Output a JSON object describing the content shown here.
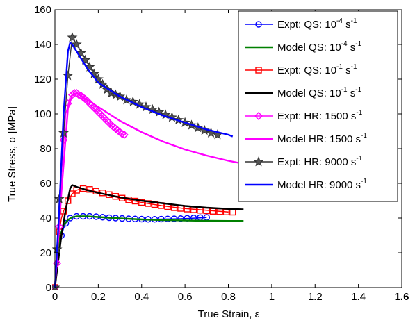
{
  "chart_data": {
    "type": "line",
    "title": "",
    "xlabel": "True Strain, ε",
    "ylabel": "True  Stress, σ [MPa]",
    "xlim": [
      0,
      1.6
    ],
    "ylim": [
      0,
      160
    ],
    "xticks": [
      {
        "value": 0,
        "label": "0"
      },
      {
        "value": 0.2,
        "label": "0.2"
      },
      {
        "value": 0.4,
        "label": "0.4"
      },
      {
        "value": 0.6,
        "label": "0.6"
      },
      {
        "value": 0.8,
        "label": "0.8"
      },
      {
        "value": 1.0,
        "label": "1"
      },
      {
        "value": 1.2,
        "label": "1.2"
      },
      {
        "value": 1.4,
        "label": "1.4"
      },
      {
        "value": 1.6,
        "label": "1.6"
      }
    ],
    "yticks": [
      {
        "value": 0,
        "label": "0"
      },
      {
        "value": 20,
        "label": "20"
      },
      {
        "value": 40,
        "label": "40"
      },
      {
        "value": 60,
        "label": "60"
      },
      {
        "value": 80,
        "label": "80"
      },
      {
        "value": 100,
        "label": "100"
      },
      {
        "value": 120,
        "label": "120"
      },
      {
        "value": 140,
        "label": "140"
      },
      {
        "value": 160,
        "label": "160"
      }
    ],
    "grid": false,
    "legend_position": "top-right",
    "series": [
      {
        "id": "expt-qs-1e-4",
        "legend": {
          "main": "Expt:   QS: 10",
          "exp": "-4",
          "unit": " s",
          "unitexp": "-1"
        },
        "color": "#0000ff",
        "line": "solid",
        "marker": "circle",
        "marker_fill": "none",
        "x": [
          0,
          0.01,
          0.02,
          0.03,
          0.04,
          0.05,
          0.06,
          0.08,
          0.1,
          0.12,
          0.15,
          0.2,
          0.25,
          0.3,
          0.35,
          0.4,
          0.45,
          0.5,
          0.55,
          0.6,
          0.65,
          0.7
        ],
        "y": [
          0,
          15,
          25,
          30,
          34,
          37,
          39,
          40.5,
          41,
          41,
          40.8,
          40.5,
          40,
          39.8,
          39.5,
          39.3,
          39.3,
          39.4,
          39.5,
          39.7,
          40,
          40.3
        ],
        "markers": [
          [
            0.0,
            0
          ],
          [
            0.03,
            30
          ],
          [
            0.05,
            37
          ],
          [
            0.07,
            40
          ],
          [
            0.1,
            41
          ],
          [
            0.13,
            41
          ],
          [
            0.16,
            41
          ],
          [
            0.19,
            40.8
          ],
          [
            0.22,
            40.5
          ],
          [
            0.25,
            40.2
          ],
          [
            0.28,
            40
          ],
          [
            0.31,
            39.8
          ],
          [
            0.34,
            39.6
          ],
          [
            0.37,
            39.5
          ],
          [
            0.4,
            39.4
          ],
          [
            0.43,
            39.3
          ],
          [
            0.46,
            39.3
          ],
          [
            0.49,
            39.4
          ],
          [
            0.52,
            39.5
          ],
          [
            0.55,
            39.6
          ],
          [
            0.58,
            39.7
          ],
          [
            0.61,
            39.9
          ],
          [
            0.64,
            40.1
          ],
          [
            0.67,
            40.3
          ],
          [
            0.7,
            40.4
          ]
        ]
      },
      {
        "id": "model-qs-1e-4",
        "legend": {
          "main": "Model QS: 10",
          "exp": "-4",
          "unit": " s",
          "unitexp": "-1"
        },
        "color": "#008000",
        "line": "solid",
        "marker": "none",
        "x": [
          0,
          0.02,
          0.04,
          0.06,
          0.08,
          0.1,
          0.15,
          0.2,
          0.3,
          0.4,
          0.5,
          0.6,
          0.7,
          0.8,
          0.87
        ],
        "y": [
          0,
          28,
          36,
          39,
          40.5,
          41,
          41,
          40.6,
          39.8,
          39.2,
          38.8,
          38.6,
          38.4,
          38.3,
          38.3
        ]
      },
      {
        "id": "expt-qs-1e-1",
        "legend": {
          "main": "Expt:    QS: 10",
          "exp": "-1",
          "unit": " s",
          "unitexp": "-1"
        },
        "color": "#ff0000",
        "line": "solid",
        "marker": "square",
        "marker_fill": "none",
        "x": [
          0,
          0.01,
          0.02,
          0.03,
          0.04,
          0.06,
          0.08,
          0.1,
          0.12,
          0.15,
          0.2,
          0.25,
          0.3,
          0.4,
          0.5,
          0.6,
          0.7,
          0.8
        ],
        "y": [
          0,
          20,
          32,
          40,
          44,
          50,
          54,
          56,
          57,
          56.5,
          55,
          53,
          51.5,
          49,
          47,
          45.5,
          44.5,
          43.5
        ],
        "markers": [
          [
            0.0,
            0
          ],
          [
            0.02,
            32
          ],
          [
            0.04,
            44
          ],
          [
            0.06,
            50
          ],
          [
            0.08,
            54
          ],
          [
            0.1,
            56
          ],
          [
            0.13,
            57
          ],
          [
            0.16,
            56.5
          ],
          [
            0.19,
            55.5
          ],
          [
            0.22,
            54.5
          ],
          [
            0.25,
            53.5
          ],
          [
            0.28,
            52.5
          ],
          [
            0.31,
            51.5
          ],
          [
            0.34,
            50.5
          ],
          [
            0.37,
            49.8
          ],
          [
            0.4,
            49
          ],
          [
            0.43,
            48.4
          ],
          [
            0.46,
            47.8
          ],
          [
            0.49,
            47.2
          ],
          [
            0.52,
            46.6
          ],
          [
            0.55,
            46
          ],
          [
            0.58,
            45.6
          ],
          [
            0.61,
            45.2
          ],
          [
            0.64,
            44.8
          ],
          [
            0.67,
            44.5
          ],
          [
            0.7,
            44.2
          ],
          [
            0.73,
            43.9
          ],
          [
            0.76,
            43.7
          ],
          [
            0.79,
            43.5
          ],
          [
            0.82,
            43.4
          ]
        ]
      },
      {
        "id": "model-qs-1e-1",
        "legend": {
          "main": "Model QS: 10",
          "exp": "-1",
          "unit": " s",
          "unitexp": "-1"
        },
        "color": "#000000",
        "line": "solid",
        "marker": "none",
        "x": [
          0,
          0.03,
          0.05,
          0.07,
          0.08,
          0.1,
          0.15,
          0.2,
          0.3,
          0.4,
          0.5,
          0.6,
          0.7,
          0.8,
          0.87
        ],
        "y": [
          0,
          30,
          45,
          57,
          59,
          58,
          56,
          54.5,
          52,
          50,
          48.5,
          47,
          46,
          45.3,
          45
        ]
      },
      {
        "id": "expt-hr-1500",
        "legend": {
          "main": "Expt:    HR: 1500 s",
          "exp": "",
          "unit": "",
          "unitexp": "-1"
        },
        "color": "#ff00ff",
        "line": "solid",
        "marker": "diamond",
        "marker_fill": "none",
        "x": [
          0,
          0.01,
          0.02,
          0.03,
          0.05,
          0.07,
          0.09,
          0.11,
          0.14,
          0.18,
          0.22,
          0.26,
          0.3,
          0.32
        ],
        "y": [
          0,
          14,
          35,
          65,
          100,
          110,
          112,
          111,
          108,
          103,
          98,
          93,
          89,
          88
        ],
        "markers": [
          [
            0.0,
            0
          ],
          [
            0.01,
            14
          ],
          [
            0.02,
            35
          ],
          [
            0.04,
            85
          ],
          [
            0.06,
            106
          ],
          [
            0.08,
            111
          ],
          [
            0.09,
            112
          ],
          [
            0.1,
            112
          ],
          [
            0.11,
            111
          ],
          [
            0.12,
            110.5
          ],
          [
            0.13,
            109.5
          ],
          [
            0.14,
            108.5
          ],
          [
            0.15,
            107.5
          ],
          [
            0.16,
            106
          ],
          [
            0.17,
            105
          ],
          [
            0.18,
            103.5
          ],
          [
            0.19,
            102.5
          ],
          [
            0.2,
            101
          ],
          [
            0.21,
            100
          ],
          [
            0.22,
            98.5
          ],
          [
            0.23,
            97.5
          ],
          [
            0.24,
            96
          ],
          [
            0.25,
            95
          ],
          [
            0.26,
            93.5
          ],
          [
            0.27,
            92.5
          ],
          [
            0.28,
            91.5
          ],
          [
            0.29,
            90.5
          ],
          [
            0.3,
            89.5
          ],
          [
            0.31,
            88.5
          ],
          [
            0.32,
            88
          ]
        ]
      },
      {
        "id": "model-hr-1500",
        "legend": {
          "main": "Model HR: 1500 s",
          "exp": "",
          "unit": "",
          "unitexp": "-1"
        },
        "color": "#ff00ff",
        "line": "solid",
        "marker": "none",
        "x": [
          0,
          0.03,
          0.06,
          0.08,
          0.1,
          0.15,
          0.2,
          0.3,
          0.4,
          0.5,
          0.6,
          0.7,
          0.8,
          0.86
        ],
        "y": [
          0,
          55,
          103,
          111,
          112,
          108,
          104,
          96,
          89.5,
          84,
          79.5,
          76,
          73,
          71.5
        ]
      },
      {
        "id": "expt-hr-9000",
        "legend": {
          "main": "Expt:    HR: 9000 s",
          "exp": "",
          "unit": "",
          "unitexp": "-1"
        },
        "color": "#333333",
        "line": "solid",
        "marker": "star",
        "marker_fill": "#555555",
        "x": [
          0,
          0.01,
          0.02,
          0.04,
          0.06,
          0.08,
          0.1,
          0.15,
          0.2,
          0.3,
          0.4,
          0.5,
          0.6,
          0.7,
          0.75
        ],
        "y": [
          0,
          22,
          51,
          89,
          122,
          144,
          140,
          130,
          120,
          110,
          105,
          100,
          95,
          90,
          88
        ],
        "markers": [
          [
            0.0,
            0
          ],
          [
            0.01,
            22
          ],
          [
            0.02,
            51
          ],
          [
            0.04,
            89
          ],
          [
            0.06,
            122
          ],
          [
            0.08,
            144
          ],
          [
            0.1,
            140
          ],
          [
            0.12,
            135
          ],
          [
            0.14,
            131
          ],
          [
            0.16,
            127
          ],
          [
            0.18,
            123
          ],
          [
            0.2,
            120
          ],
          [
            0.22,
            117
          ],
          [
            0.24,
            114
          ],
          [
            0.26,
            112
          ],
          [
            0.28,
            111
          ],
          [
            0.3,
            110
          ],
          [
            0.33,
            108
          ],
          [
            0.36,
            107
          ],
          [
            0.39,
            105.5
          ],
          [
            0.42,
            104
          ],
          [
            0.45,
            102.5
          ],
          [
            0.48,
            101
          ],
          [
            0.51,
            99.5
          ],
          [
            0.54,
            98
          ],
          [
            0.57,
            96.5
          ],
          [
            0.6,
            95
          ],
          [
            0.63,
            93.5
          ],
          [
            0.66,
            92
          ],
          [
            0.69,
            90.5
          ],
          [
            0.72,
            89
          ],
          [
            0.75,
            88
          ]
        ]
      },
      {
        "id": "model-hr-9000",
        "legend": {
          "main": "Model HR: 9000 s",
          "exp": "",
          "unit": "",
          "unitexp": "-1"
        },
        "color": "#0000ff",
        "line": "solid",
        "marker": "none",
        "x": [
          0,
          0.02,
          0.04,
          0.06,
          0.07,
          0.08,
          0.1,
          0.15,
          0.2,
          0.3,
          0.4,
          0.5,
          0.6,
          0.7,
          0.8,
          0.82
        ],
        "y": [
          0,
          45,
          100,
          136,
          141,
          140,
          136,
          126,
          118,
          110,
          104,
          99,
          95,
          91,
          88,
          87
        ]
      }
    ]
  }
}
